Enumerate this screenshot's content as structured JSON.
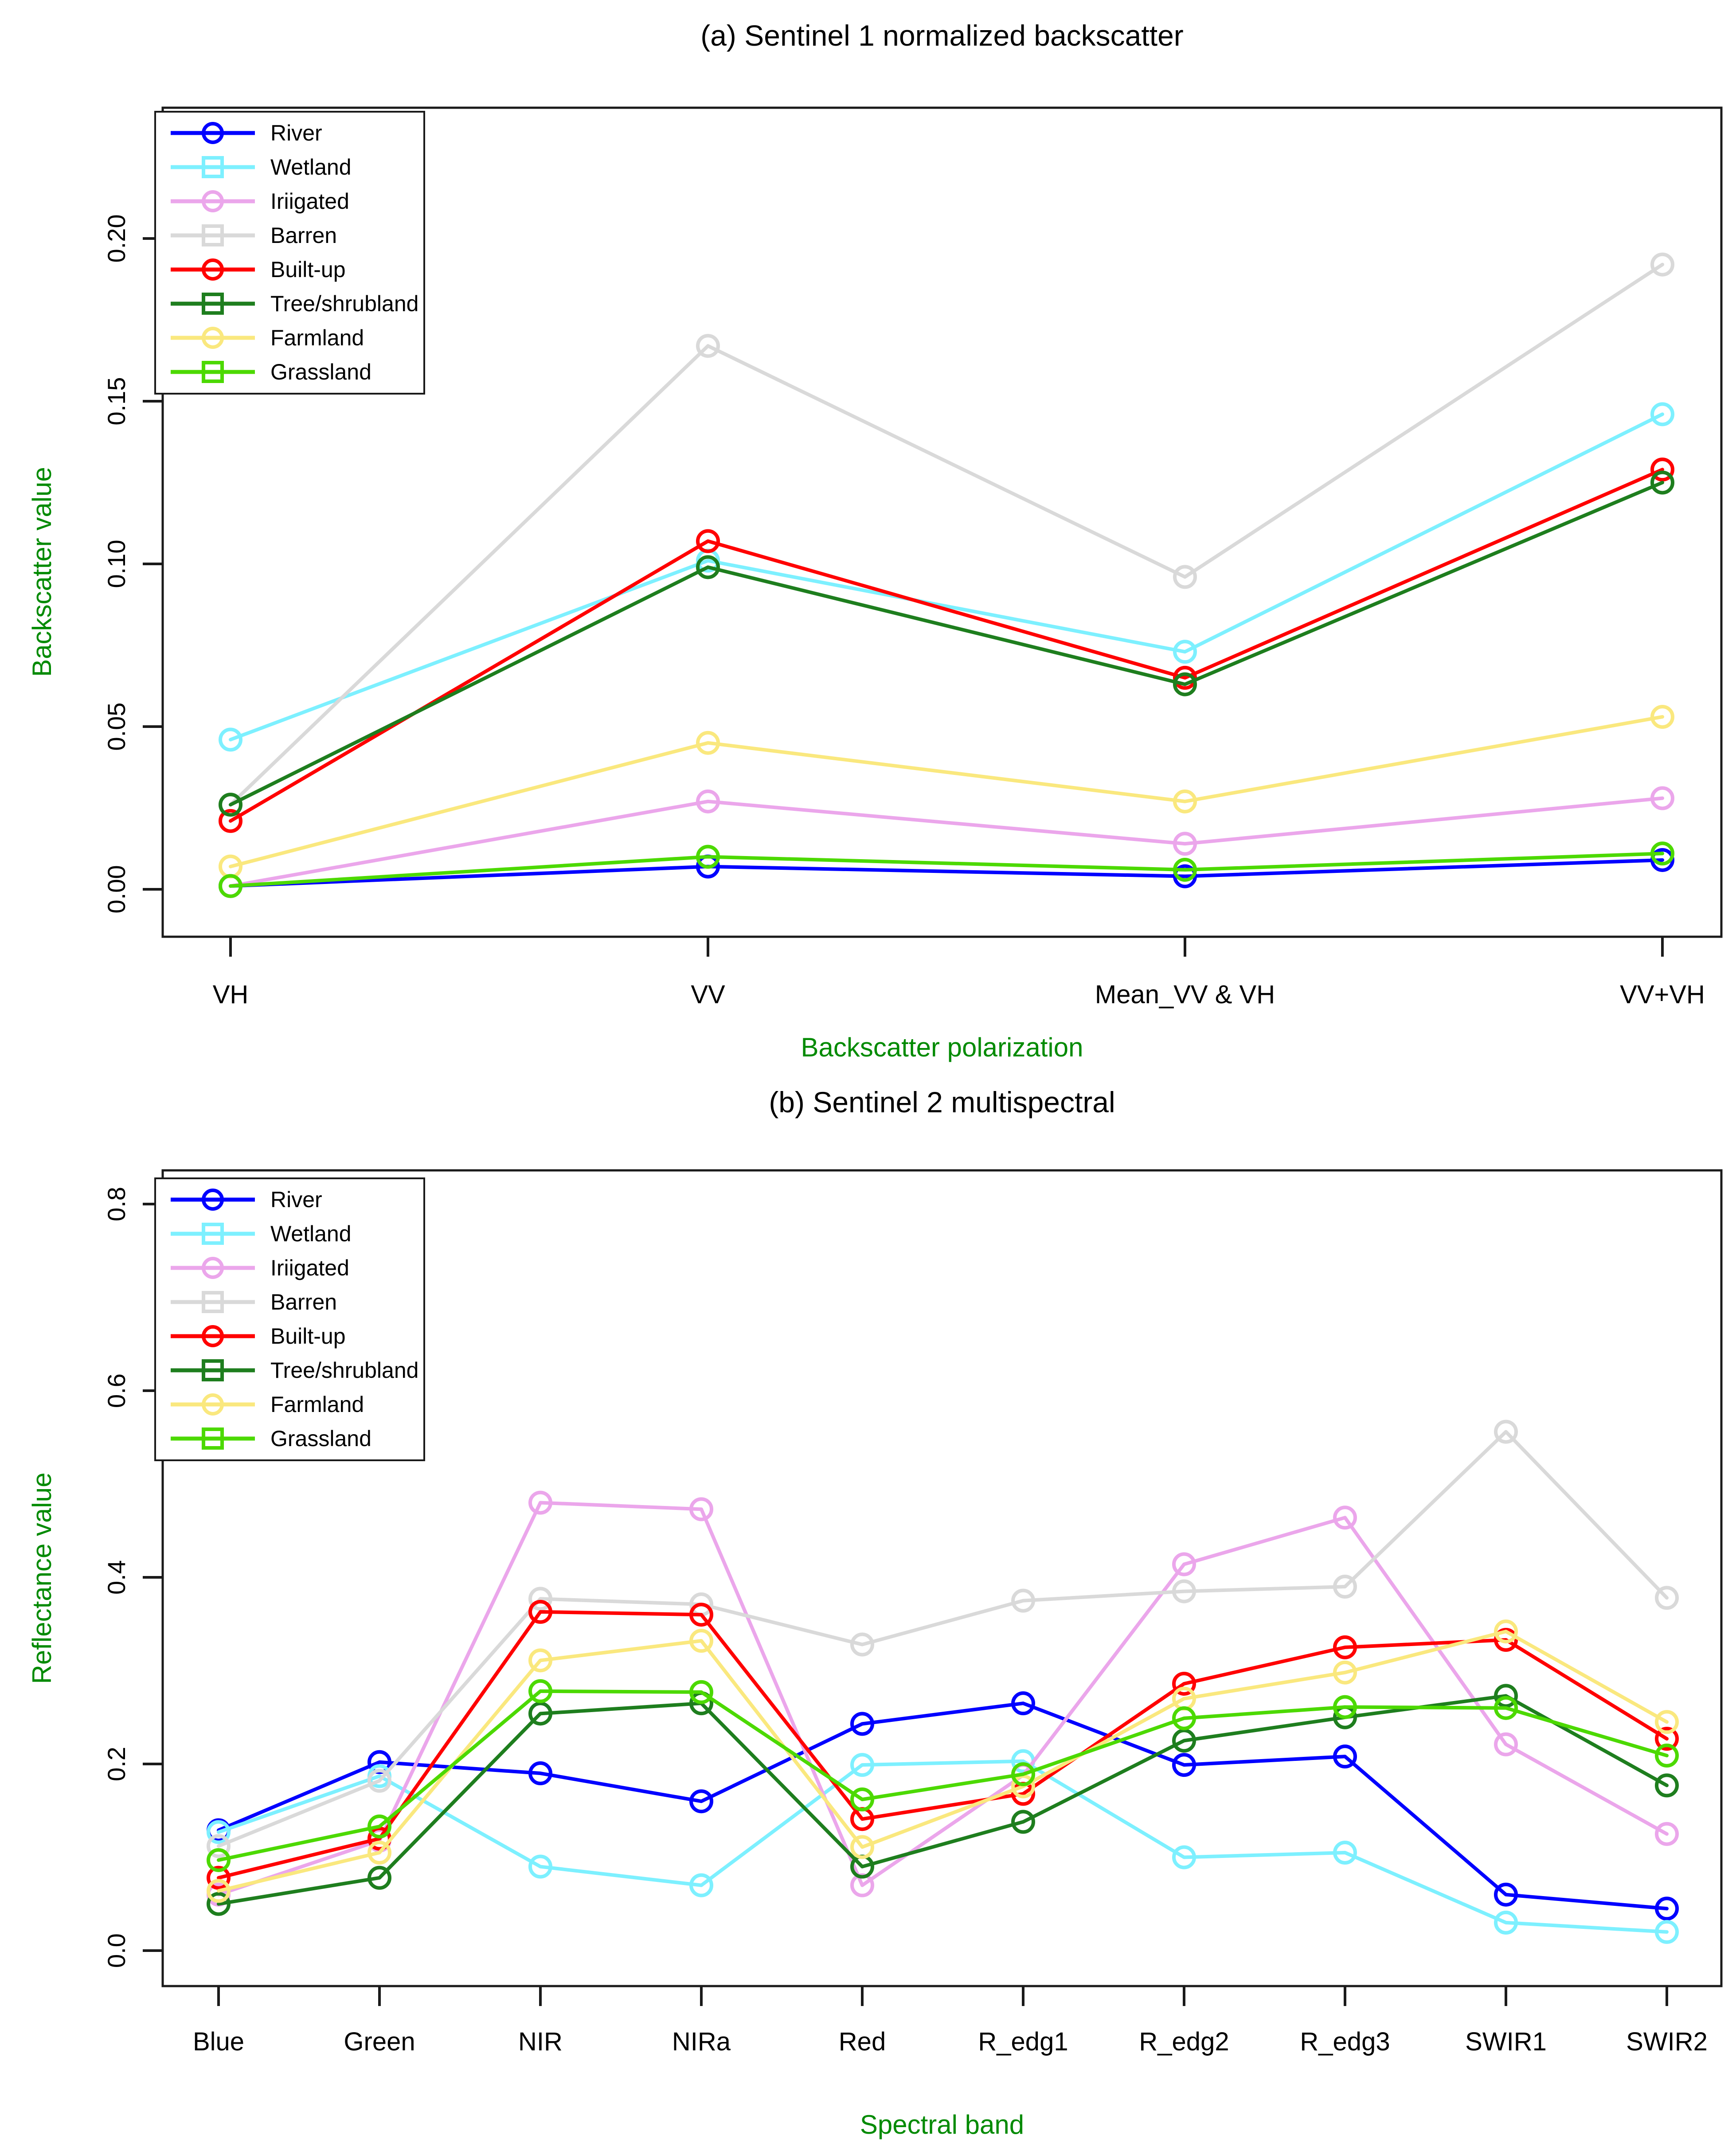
{
  "page": {
    "background": "#ffffff",
    "axis_color": "#1a1a1a",
    "label_color": "#018A01"
  },
  "panels": [
    {
      "title": "(a) Sentinel 1 normalized backscatter",
      "xlabel": "Backscatter polarization",
      "ylabel": "Backscatter value"
    },
    {
      "title": "(b) Sentinel 2 multispectral",
      "xlabel": "Spectral band",
      "ylabel": "Reflectance value"
    }
  ],
  "chart_data": [
    {
      "type": "line",
      "title": "(a) Sentinel 1 normalized backscatter",
      "xlabel": "Backscatter polarization",
      "ylabel": "Backscatter value",
      "categories": [
        "VH",
        "VV",
        "Mean_VV & VH",
        "VV+VH"
      ],
      "ylim": [
        -0.01,
        0.24
      ],
      "grid": false,
      "legend_position": "top-left",
      "yticks": [
        {
          "label": "0.00",
          "value": 0.0
        },
        {
          "label": "0.05",
          "value": 0.05
        },
        {
          "label": "0.10",
          "value": 0.1
        },
        {
          "label": "0.15",
          "value": 0.15
        },
        {
          "label": "0.20",
          "value": 0.2
        }
      ],
      "series": [
        {
          "name": "River",
          "color": "#0000FF",
          "legend_marker": "circle",
          "values": [
            0.001,
            0.007,
            0.004,
            0.009
          ]
        },
        {
          "name": "Wetland",
          "color": "#7DF0FF",
          "legend_marker": "square",
          "values": [
            0.046,
            0.101,
            0.073,
            0.146
          ]
        },
        {
          "name": "Iriigated",
          "color": "#EBA6EB",
          "legend_marker": "circle",
          "values": [
            0.001,
            0.027,
            0.014,
            0.028
          ]
        },
        {
          "name": "Barren",
          "color": "#D9D9D9",
          "legend_marker": "square",
          "values": [
            0.026,
            0.167,
            0.096,
            0.192
          ]
        },
        {
          "name": "Built-up",
          "color": "#FF0000",
          "legend_marker": "circle",
          "values": [
            0.021,
            0.107,
            0.065,
            0.129
          ]
        },
        {
          "name": "Tree/shrubland",
          "color": "#1E7E1E",
          "legend_marker": "square",
          "values": [
            0.026,
            0.099,
            0.063,
            0.125
          ]
        },
        {
          "name": "Farmland",
          "color": "#FAE87E",
          "legend_marker": "circle",
          "values": [
            0.007,
            0.045,
            0.027,
            0.053
          ]
        },
        {
          "name": "Grassland",
          "color": "#4CD900",
          "legend_marker": "square",
          "values": [
            0.001,
            0.01,
            0.006,
            0.011
          ]
        }
      ]
    },
    {
      "type": "line",
      "title": "(b) Sentinel 2 multispectral",
      "xlabel": "Spectral band",
      "ylabel": "Reflectance value",
      "categories": [
        "Blue",
        "Green",
        "NIR",
        "NIRa",
        "Red",
        "R_edg1",
        "R_edg2",
        "R_edg3",
        "SWIR1",
        "SWIR2"
      ],
      "ylim": [
        -0.04,
        0.84
      ],
      "grid": false,
      "legend_position": "top-left",
      "yticks": [
        {
          "label": "0.0",
          "value": 0.0
        },
        {
          "label": "0.2",
          "value": 0.2
        },
        {
          "label": "0.4",
          "value": 0.4
        },
        {
          "label": "0.6",
          "value": 0.6
        },
        {
          "label": "0.8",
          "value": 0.8
        }
      ],
      "series": [
        {
          "name": "River",
          "color": "#0000FF",
          "legend_marker": "circle",
          "values": [
            0.129,
            0.202,
            0.19,
            0.16,
            0.243,
            0.265,
            0.199,
            0.208,
            0.06,
            0.045
          ]
        },
        {
          "name": "Wetland",
          "color": "#7DF0FF",
          "legend_marker": "square",
          "values": [
            0.127,
            0.187,
            0.09,
            0.07,
            0.199,
            0.203,
            0.1,
            0.105,
            0.03,
            0.02
          ]
        },
        {
          "name": "Iriigated",
          "color": "#EBA6EB",
          "legend_marker": "circle",
          "values": [
            0.06,
            0.118,
            0.48,
            0.473,
            0.07,
            0.188,
            0.414,
            0.464,
            0.221,
            0.125
          ]
        },
        {
          "name": "Barren",
          "color": "#D9D9D9",
          "legend_marker": "square",
          "values": [
            0.112,
            0.182,
            0.377,
            0.371,
            0.328,
            0.375,
            0.385,
            0.39,
            0.556,
            0.378
          ]
        },
        {
          "name": "Built-up",
          "color": "#FF0000",
          "legend_marker": "circle",
          "values": [
            0.078,
            0.12,
            0.363,
            0.36,
            0.141,
            0.168,
            0.286,
            0.325,
            0.333,
            0.227
          ]
        },
        {
          "name": "Tree/shrubland",
          "color": "#1E7E1E",
          "legend_marker": "square",
          "values": [
            0.05,
            0.078,
            0.254,
            0.265,
            0.09,
            0.138,
            0.225,
            0.25,
            0.273,
            0.177
          ]
        },
        {
          "name": "Farmland",
          "color": "#FAE87E",
          "legend_marker": "circle",
          "values": [
            0.064,
            0.105,
            0.311,
            0.332,
            0.111,
            0.176,
            0.27,
            0.298,
            0.342,
            0.245
          ]
        },
        {
          "name": "Grassland",
          "color": "#4CD900",
          "legend_marker": "square",
          "values": [
            0.097,
            0.133,
            0.278,
            0.277,
            0.162,
            0.189,
            0.249,
            0.261,
            0.26,
            0.209
          ]
        }
      ]
    }
  ]
}
